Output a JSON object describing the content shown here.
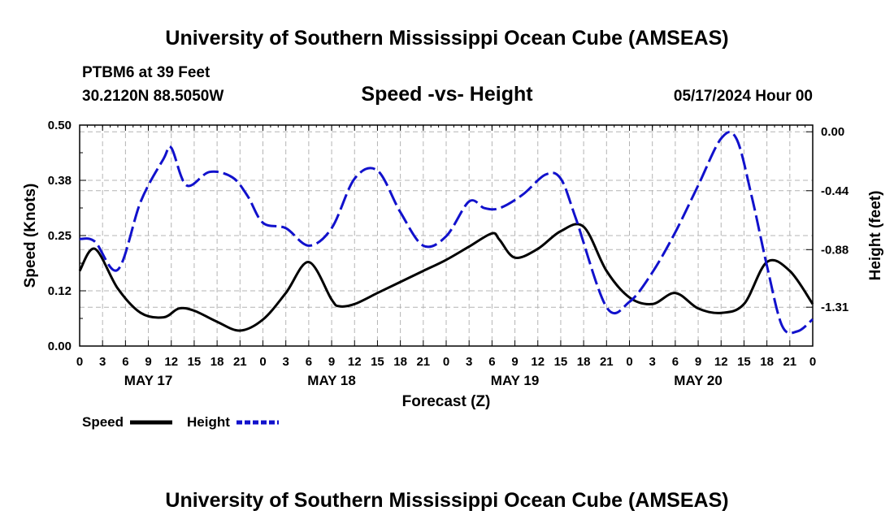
{
  "header": {
    "title": "University of Southern Mississippi Ocean Cube (AMSEAS)",
    "station_line": "PTBM6 at 39 Feet",
    "coords": "30.2120N  88.5050W",
    "chart_title": "Speed -vs- Height",
    "date_label": "05/17/2024 Hour 00"
  },
  "footer": {
    "title": "University of Southern Mississippi Ocean Cube (AMSEAS)"
  },
  "legend": {
    "speed_label": "Speed",
    "height_label": "Height"
  },
  "colors": {
    "speed": "#000000",
    "height": "#1111cc",
    "grid": "#b4b4b4"
  },
  "chart_data": {
    "type": "line",
    "title": "Speed -vs- Height",
    "xlabel": "Forecast (Z)",
    "ylabel_left": "Speed (Knots)",
    "ylabel_right": "Height (feet)",
    "x_hours_range": [
      0,
      96
    ],
    "x_ticks": [
      "0",
      "3",
      "6",
      "9",
      "12",
      "15",
      "18",
      "21",
      "0",
      "3",
      "6",
      "9",
      "12",
      "15",
      "18",
      "21",
      "0",
      "3",
      "6",
      "9",
      "12",
      "15",
      "18",
      "21",
      "0",
      "3",
      "6",
      "9",
      "12",
      "15",
      "18",
      "21",
      "0"
    ],
    "date_labels": [
      {
        "label": "MAY 17",
        "hour": 9
      },
      {
        "label": "MAY 18",
        "hour": 33
      },
      {
        "label": "MAY 19",
        "hour": 57
      },
      {
        "label": "MAY 20",
        "hour": 81
      }
    ],
    "ylim_left": [
      0,
      0.5
    ],
    "yticks_left": [
      {
        "v": 0.0,
        "label": "0.00"
      },
      {
        "v": 0.125,
        "label": "0.12"
      },
      {
        "v": 0.25,
        "label": "0.25"
      },
      {
        "v": 0.375,
        "label": "0.38"
      },
      {
        "v": 0.5,
        "label": "0.50"
      }
    ],
    "ylim_right": [
      -1.6,
      0.05
    ],
    "yticks_right": [
      {
        "v": 0.0,
        "label": "0.00"
      },
      {
        "v": -0.44,
        "label": "-0.44"
      },
      {
        "v": -0.88,
        "label": "-0.88"
      },
      {
        "v": -1.31,
        "label": "-1.31"
      }
    ],
    "series": [
      {
        "name": "Speed",
        "axis": "left",
        "style": "solid",
        "x": [
          0,
          2,
          5,
          8,
          11,
          13,
          15,
          18,
          21,
          24,
          27,
          30,
          33,
          34,
          36,
          39,
          42,
          45,
          48,
          51,
          54,
          55,
          57,
          60,
          63,
          66,
          69,
          72,
          75,
          78,
          81,
          84,
          87,
          90,
          93,
          96
        ],
        "values": [
          0.17,
          0.22,
          0.13,
          0.075,
          0.065,
          0.085,
          0.08,
          0.055,
          0.035,
          0.06,
          0.12,
          0.19,
          0.105,
          0.09,
          0.095,
          0.12,
          0.145,
          0.17,
          0.195,
          0.225,
          0.255,
          0.24,
          0.2,
          0.22,
          0.26,
          0.27,
          0.17,
          0.11,
          0.095,
          0.12,
          0.085,
          0.075,
          0.095,
          0.19,
          0.17,
          0.095
        ]
      },
      {
        "name": "Height",
        "axis": "right",
        "style": "dashed",
        "x": [
          0,
          2,
          5,
          8,
          11,
          12,
          14,
          17,
          20,
          22,
          24,
          27,
          30,
          33,
          36,
          39,
          42,
          45,
          48,
          51,
          53,
          55,
          58,
          61,
          63,
          65,
          69,
          72,
          75,
          78,
          81,
          84,
          86,
          88,
          90,
          92,
          94,
          96
        ],
        "values": [
          -0.8,
          -0.82,
          -1.03,
          -0.52,
          -0.2,
          -0.12,
          -0.4,
          -0.3,
          -0.34,
          -0.48,
          -0.68,
          -0.72,
          -0.85,
          -0.72,
          -0.35,
          -0.29,
          -0.6,
          -0.85,
          -0.78,
          -0.52,
          -0.57,
          -0.57,
          -0.47,
          -0.32,
          -0.35,
          -0.65,
          -1.31,
          -1.27,
          -1.05,
          -0.75,
          -0.4,
          -0.05,
          -0.05,
          -0.48,
          -1.0,
          -1.45,
          -1.49,
          -1.4
        ]
      }
    ]
  }
}
